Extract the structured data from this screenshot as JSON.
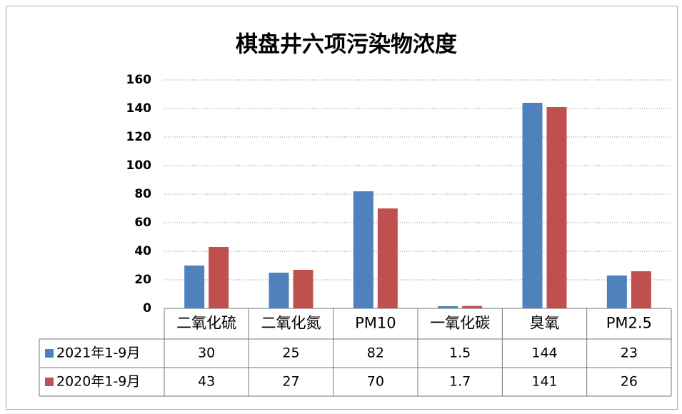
{
  "chart_data": {
    "type": "bar",
    "title": "棋盘井六项污染物浓度",
    "categories": [
      "二氧化硫",
      "二氧化氮",
      "PM10",
      "一氧化碳",
      "臭氧",
      "PM2.5"
    ],
    "series": [
      {
        "name": "2021年1-9月",
        "color": "#4f81bd",
        "values": [
          30,
          25,
          82,
          1.5,
          144,
          23
        ]
      },
      {
        "name": "2020年1-9月",
        "color": "#c0504d",
        "values": [
          43,
          27,
          70,
          1.7,
          141,
          26
        ]
      }
    ],
    "ylim": [
      0,
      160
    ],
    "yticks": [
      0,
      20,
      40,
      60,
      80,
      100,
      120,
      140,
      160
    ],
    "grid": true
  }
}
